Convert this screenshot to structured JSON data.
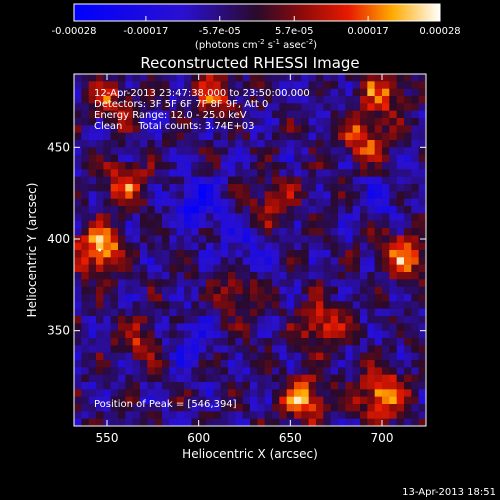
{
  "colorbar": {
    "ticks": [
      "-0.00028",
      "-0.00017",
      "-5.7e-05",
      "5.7e-05",
      "0.00017",
      "0.00028"
    ],
    "tick_values": [
      -0.00028,
      -0.00017,
      -5.7e-05,
      5.7e-05,
      0.00017,
      0.00028
    ],
    "units_main": "(photons cm",
    "units_sup1": "-2",
    "units_mid": " s",
    "units_sup2": "-1",
    "units_end": " asec",
    "units_sup3": "-2",
    "units_close": ")",
    "range": [
      -0.00028,
      0.00028
    ]
  },
  "chart_data": {
    "type": "heatmap",
    "title": "Reconstructed RHESSI Image",
    "xlabel": "Heliocentric X (arcsec)",
    "ylabel": "Heliocentric Y (arcsec)",
    "xlim": [
      532,
      724
    ],
    "ylim": [
      298,
      490
    ],
    "xticks": [
      550,
      600,
      650,
      700
    ],
    "yticks": [
      350,
      400,
      450
    ],
    "grid": false,
    "colormap": "blue-purple-red-yellow-white (diverging)",
    "value_range": [
      -0.00028,
      0.00028
    ],
    "peak_position": [
      546,
      394
    ],
    "hotspots": [
      {
        "x": 546,
        "y": 394,
        "value": 0.00028
      },
      {
        "x": 700,
        "y": 315,
        "value": 0.00026
      },
      {
        "x": 658,
        "y": 312,
        "value": 0.00024
      },
      {
        "x": 668,
        "y": 352,
        "value": 0.0002
      },
      {
        "x": 712,
        "y": 392,
        "value": 0.00022
      },
      {
        "x": 560,
        "y": 430,
        "value": 0.00018
      },
      {
        "x": 552,
        "y": 475,
        "value": 0.00016
      },
      {
        "x": 610,
        "y": 480,
        "value": 0.00018
      },
      {
        "x": 690,
        "y": 455,
        "value": 0.0002
      },
      {
        "x": 640,
        "y": 420,
        "value": 0.00015
      },
      {
        "x": 700,
        "y": 480,
        "value": 0.00018
      },
      {
        "x": 622,
        "y": 370,
        "value": 0.00014
      },
      {
        "x": 568,
        "y": 345,
        "value": 0.00014
      }
    ],
    "coldspots": [
      {
        "x": 600,
        "y": 420,
        "value": -0.00017
      },
      {
        "x": 595,
        "y": 345,
        "value": -0.00012
      },
      {
        "x": 625,
        "y": 395,
        "value": -0.0001
      },
      {
        "x": 700,
        "y": 420,
        "value": -8e-05
      }
    ]
  },
  "annotations": {
    "time_range": "12-Apr-2013 23:47:38.000 to 23:50:00.000",
    "detectors": "Detectors: 3F 5F 6F 7F 8F 9F, Att 0",
    "energy": "Energy Range: 12.0 - 25.0 keV",
    "clean": "Clean     Total counts: 3.74E+03",
    "peak": "Position of Peak = [546,394]"
  },
  "footer": {
    "timestamp": "13-Apr-2013 18:51"
  }
}
